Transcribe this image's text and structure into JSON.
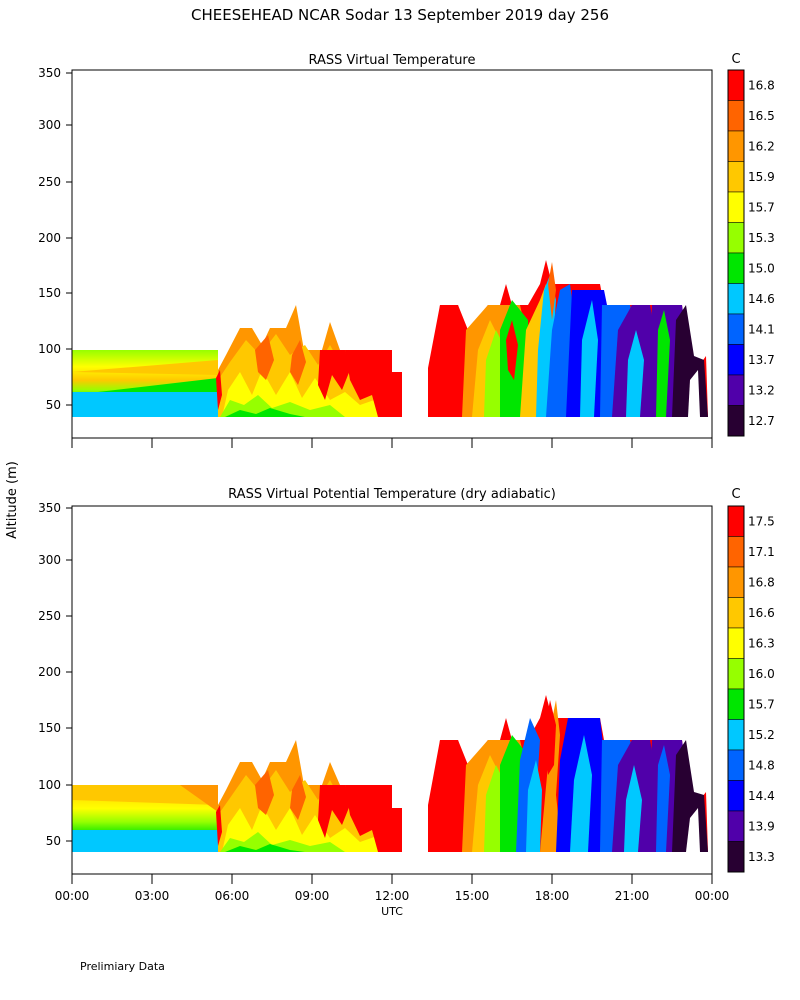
{
  "figure": {
    "title": "CHEESEHEAD  NCAR Sodar  13 September 2019  day 256",
    "ylabel": "Altitude (m)",
    "xlabel": "UTC",
    "footer": "Prelimiary Data",
    "y_ticks": [
      "350",
      "300",
      "250",
      "200",
      "150",
      "100",
      "50"
    ],
    "x_ticks": [
      "00:00",
      "03:00",
      "06:00",
      "09:00",
      "12:00",
      "15:00",
      "18:00",
      "21:00",
      "00:00"
    ]
  },
  "chart_data": [
    {
      "type": "heatmap",
      "title": "RASS Virtual Temperature",
      "xlabel": "UTC",
      "ylabel": "Altitude (m)",
      "ylim": [
        20,
        352
      ],
      "xlim": [
        0,
        24
      ],
      "colorbar_unit": "C",
      "colorbar_levels": [
        "16.8",
        "16.5",
        "16.2",
        "15.9",
        "15.7",
        "15.3",
        "15.0",
        "14.6",
        "14.1",
        "13.7",
        "13.2",
        "12.7"
      ],
      "colorbar_colors": [
        "#ff0000",
        "#ff6400",
        "#ff9600",
        "#ffc800",
        "#ffff00",
        "#96ff00",
        "#00e600",
        "#00c8ff",
        "#0064ff",
        "#0000ff",
        "#5000aa",
        "#280032"
      ],
      "segments": [
        {
          "x": [
            0.0,
            5.5
          ],
          "top": 100,
          "bottom": 40,
          "description": "early morning profile from 00:00 to about 05:30"
        },
        {
          "x": [
            5.5,
            12.4
          ],
          "top": 140,
          "bottom": 40,
          "description": "late morning to midday profile"
        },
        {
          "x": [
            13.4,
            23.9
          ],
          "top": 180,
          "bottom": 40,
          "description": "afternoon to evening profile"
        }
      ],
      "grid": false
    },
    {
      "type": "heatmap",
      "title": "RASS Virtual Potential Temperature (dry adiabatic)",
      "xlabel": "UTC",
      "ylabel": "Altitude (m)",
      "ylim": [
        20,
        352
      ],
      "xlim": [
        0,
        24
      ],
      "colorbar_unit": "C",
      "colorbar_levels": [
        "17.5",
        "17.1",
        "16.8",
        "16.6",
        "16.3",
        "16.0",
        "15.7",
        "15.2",
        "14.8",
        "14.4",
        "13.9",
        "13.3"
      ],
      "colorbar_colors": [
        "#ff0000",
        "#ff6400",
        "#ff9600",
        "#ffc800",
        "#ffff00",
        "#96ff00",
        "#00e600",
        "#00c8ff",
        "#0064ff",
        "#0000ff",
        "#5000aa",
        "#280032"
      ],
      "segments": [
        {
          "x": [
            0.0,
            5.5
          ],
          "top": 100,
          "bottom": 40
        },
        {
          "x": [
            5.5,
            12.4
          ],
          "top": 140,
          "bottom": 40
        },
        {
          "x": [
            13.4,
            23.9
          ],
          "top": 180,
          "bottom": 40
        }
      ],
      "grid": false
    }
  ]
}
